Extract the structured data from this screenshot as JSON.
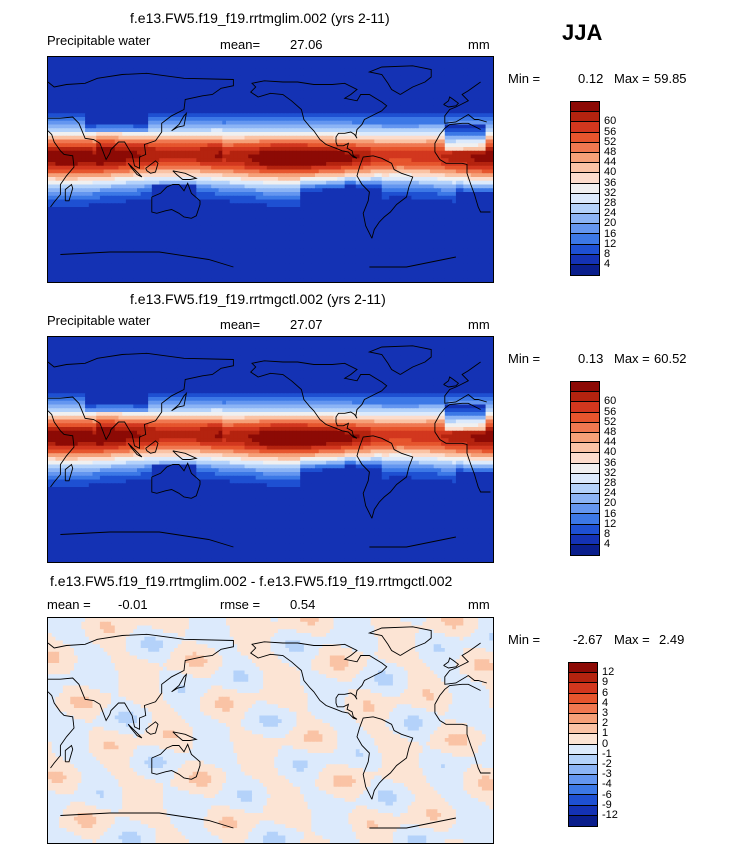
{
  "season": "JJA",
  "palettes": {
    "abs": [
      "#0a1e8c",
      "#1432b4",
      "#1e50d2",
      "#3c78e6",
      "#6496f0",
      "#8cb4f5",
      "#b4d2fa",
      "#dceafc",
      "#f0f0f0",
      "#fcdccc",
      "#fac3a5",
      "#f5a078",
      "#f07850",
      "#e6552d",
      "#d2371e",
      "#b4230f",
      "#8c0a05"
    ],
    "diff": [
      "#0a1e8c",
      "#1432b4",
      "#1e50d2",
      "#3c78e6",
      "#6496f0",
      "#8cb4f5",
      "#b4d2fa",
      "#dceafc",
      "#fce4d4",
      "#fac3a5",
      "#f5a078",
      "#f07850",
      "#e6552d",
      "#d2371e",
      "#b4230f",
      "#8c0a05"
    ]
  },
  "panels": [
    {
      "title": "f.e13.FW5.f19_f19.rrtmglim.002 (yrs 2-11)",
      "variable": "Precipitable water",
      "stat_label": "mean=",
      "stat_value": "27.06",
      "units": "mm",
      "min_label": "Min =",
      "min_value": "0.12",
      "max_label": "Max =",
      "max_value": "59.85",
      "colorbar_levels": [
        "60",
        "56",
        "52",
        "48",
        "44",
        "40",
        "36",
        "32",
        "28",
        "24",
        "20",
        "16",
        "12",
        "8",
        "4"
      ],
      "field": "abs"
    },
    {
      "title": "f.e13.FW5.f19_f19.rrtmgctl.002 (yrs 2-11)",
      "variable": "Precipitable water",
      "stat_label": "mean=",
      "stat_value": "27.07",
      "units": "mm",
      "min_label": "Min =",
      "min_value": "0.13",
      "max_label": "Max =",
      "max_value": "60.52",
      "colorbar_levels": [
        "60",
        "56",
        "52",
        "48",
        "44",
        "40",
        "36",
        "32",
        "28",
        "24",
        "20",
        "16",
        "12",
        "8",
        "4"
      ],
      "field": "abs"
    },
    {
      "title": "f.e13.FW5.f19_f19.rrtmglim.002 - f.e13.FW5.f19_f19.rrtmgctl.002",
      "variable": "",
      "stat_label": "mean =",
      "stat_value": "-0.01",
      "stat2_label": "rmse =",
      "stat2_value": "0.54",
      "units": "mm",
      "min_label": "Min =",
      "min_value": "-2.67",
      "max_label": "Max =",
      "max_value": "2.49",
      "colorbar_levels": [
        "12",
        "9",
        "6",
        "4",
        "3",
        "2",
        "1",
        "0",
        "-1",
        "-2",
        "-3",
        "-4",
        "-6",
        "-9",
        "-12"
      ],
      "field": "diff"
    }
  ],
  "chart_data": [
    {
      "type": "heatmap",
      "title": "f.e13.FW5.f19_f19.rrtmglim.002 (yrs 2-11)",
      "variable": "Precipitable water",
      "units": "mm",
      "mean": 27.06,
      "min": 0.12,
      "max": 59.85,
      "contour_levels": [
        4,
        8,
        12,
        16,
        20,
        24,
        28,
        32,
        36,
        40,
        44,
        48,
        52,
        56,
        60
      ]
    },
    {
      "type": "heatmap",
      "title": "f.e13.FW5.f19_f19.rrtmgctl.002 (yrs 2-11)",
      "variable": "Precipitable water",
      "units": "mm",
      "mean": 27.07,
      "min": 0.13,
      "max": 60.52,
      "contour_levels": [
        4,
        8,
        12,
        16,
        20,
        24,
        28,
        32,
        36,
        40,
        44,
        48,
        52,
        56,
        60
      ]
    },
    {
      "type": "heatmap",
      "title": "f.e13.FW5.f19_f19.rrtmglim.002 - f.e13.FW5.f19_f19.rrtmgctl.002",
      "units": "mm",
      "mean": -0.01,
      "rmse": 0.54,
      "min": -2.67,
      "max": 2.49,
      "contour_levels": [
        -12,
        -9,
        -6,
        -4,
        -3,
        -2,
        -1,
        0,
        1,
        2,
        3,
        4,
        6,
        9,
        12
      ]
    }
  ]
}
